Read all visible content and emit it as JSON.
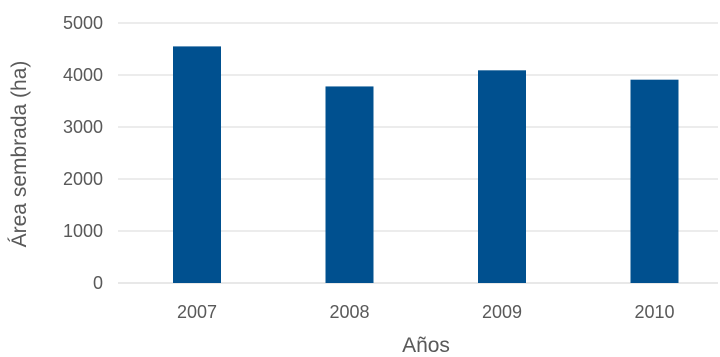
{
  "chart_data": {
    "type": "bar",
    "categories": [
      "2007",
      "2008",
      "2009",
      "2010"
    ],
    "values": [
      4550,
      3780,
      4090,
      3910
    ],
    "xlabel": "Años",
    "ylabel": "Área sembrada (ha)",
    "ylim": [
      0,
      5000
    ],
    "yticks": [
      "0",
      "1000",
      "2000",
      "3000",
      "4000",
      "5000"
    ],
    "grid": true,
    "legend": "none",
    "colors": {
      "bar": "#00508F",
      "grid": "#D9D9D9",
      "text": "#595959"
    }
  }
}
